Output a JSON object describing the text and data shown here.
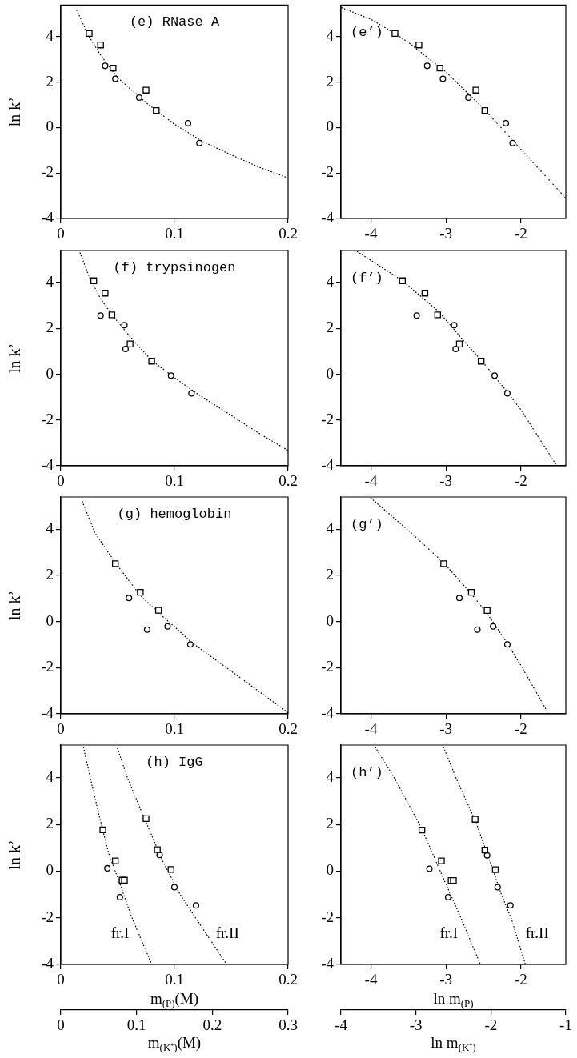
{
  "chart_data": [
    {
      "type": "scatter",
      "title": "(e) RNase A",
      "ylabel": "ln k’",
      "xlim": [
        0,
        0.2
      ],
      "ylim": [
        -4,
        5.4
      ],
      "xticks": [
        0,
        0.1,
        0.2
      ],
      "yticks": [
        -4,
        -2,
        0,
        2,
        4
      ],
      "series": [
        {
          "marker": "square",
          "color": "#000000",
          "x": [
            0.025,
            0.035,
            0.046,
            0.075,
            0.084
          ],
          "values": [
            4.15,
            3.64,
            2.62,
            1.65,
            0.75
          ]
        },
        {
          "marker": "circle",
          "color": "#000000",
          "x": [
            0.039,
            0.048,
            0.069,
            0.112,
            0.122
          ],
          "values": [
            2.72,
            2.15,
            1.32,
            0.19,
            -0.68
          ]
        },
        {
          "type": "line",
          "marker": "none",
          "line_style": "dotted",
          "color": "#000000",
          "x": [
            0.014,
            0.025,
            0.035,
            0.05,
            0.075,
            0.1,
            0.125,
            0.15,
            0.175,
            0.2
          ],
          "values": [
            5.17,
            4.0,
            3.2,
            2.2,
            1.1,
            0.15,
            -0.62,
            -1.2,
            -1.75,
            -2.22
          ]
        }
      ]
    },
    {
      "type": "scatter",
      "title": "(e’)",
      "xlim": [
        -4.4,
        -1.4
      ],
      "ylim": [
        -4,
        5.4
      ],
      "xticks": [
        -4,
        -3,
        -2
      ],
      "yticks": [
        -4,
        -2,
        0,
        2,
        4
      ],
      "series": [
        {
          "marker": "square",
          "color": "#000000",
          "x": [
            -3.68,
            -3.36,
            -3.08,
            -2.6,
            -2.48
          ],
          "values": [
            4.15,
            3.64,
            2.62,
            1.65,
            0.75
          ]
        },
        {
          "marker": "circle",
          "color": "#000000",
          "x": [
            -3.25,
            -3.04,
            -2.7,
            -2.2,
            -2.11
          ],
          "values": [
            2.72,
            2.15,
            1.32,
            0.19,
            -0.68
          ]
        },
        {
          "type": "line",
          "marker": "none",
          "line_style": "dotted",
          "color": "#000000",
          "x": [
            -4.39,
            -4.0,
            -3.68,
            -3.5,
            -3.0,
            -2.5,
            -2.0,
            -1.41
          ],
          "values": [
            5.28,
            4.77,
            4.15,
            3.75,
            2.45,
            0.85,
            -0.95,
            -3.07
          ]
        }
      ]
    },
    {
      "type": "scatter",
      "title": "(f) trypsinogen",
      "ylabel": "ln k’",
      "xlim": [
        0,
        0.2
      ],
      "ylim": [
        -4,
        5.4
      ],
      "xticks": [
        0,
        0.1,
        0.2
      ],
      "yticks": [
        -4,
        -2,
        0,
        2,
        4
      ],
      "series": [
        {
          "marker": "square",
          "color": "#000000",
          "x": [
            0.029,
            0.039,
            0.045,
            0.061,
            0.08
          ],
          "values": [
            4.08,
            3.54,
            2.59,
            1.32,
            0.57
          ]
        },
        {
          "marker": "circle",
          "color": "#000000",
          "x": [
            0.035,
            0.056,
            0.057,
            0.097,
            0.115
          ],
          "values": [
            2.56,
            2.14,
            1.1,
            -0.06,
            -0.84
          ]
        },
        {
          "type": "line",
          "marker": "none",
          "line_style": "dotted",
          "color": "#000000",
          "x": [
            0.017,
            0.025,
            0.035,
            0.045,
            0.06,
            0.08,
            0.1,
            0.12,
            0.15,
            0.175,
            0.2
          ],
          "values": [
            5.3,
            4.25,
            3.3,
            2.6,
            1.7,
            0.6,
            -0.15,
            -0.85,
            -1.8,
            -2.6,
            -3.33
          ]
        }
      ]
    },
    {
      "type": "scatter",
      "title": "(f’)",
      "xlim": [
        -4.4,
        -1.4
      ],
      "ylim": [
        -4,
        5.4
      ],
      "xticks": [
        -4,
        -3,
        -2
      ],
      "yticks": [
        -4,
        -2,
        0,
        2,
        4
      ],
      "series": [
        {
          "marker": "square",
          "color": "#000000",
          "x": [
            -3.58,
            -3.28,
            -3.11,
            -2.82,
            -2.53
          ],
          "values": [
            4.08,
            3.54,
            2.59,
            1.32,
            0.57
          ]
        },
        {
          "marker": "circle",
          "color": "#000000",
          "x": [
            -3.39,
            -2.89,
            -2.87,
            -2.35,
            -2.18
          ],
          "values": [
            2.56,
            2.14,
            1.1,
            -0.06,
            -0.84
          ]
        },
        {
          "type": "line",
          "marker": "none",
          "line_style": "dotted",
          "color": "#000000",
          "x": [
            -4.18,
            -3.58,
            -3.1,
            -2.8,
            -2.5,
            -2.2,
            -2.0,
            -1.52
          ],
          "values": [
            5.35,
            4.08,
            2.75,
            1.6,
            0.5,
            -0.7,
            -1.55,
            -4.0
          ]
        }
      ]
    },
    {
      "type": "scatter",
      "title": "(g) hemoglobin",
      "ylabel": "ln k’",
      "xlim": [
        0,
        0.2
      ],
      "ylim": [
        -4,
        5.4
      ],
      "xticks": [
        0,
        0.1,
        0.2
      ],
      "yticks": [
        -4,
        -2,
        0,
        2,
        4
      ],
      "series": [
        {
          "marker": "square",
          "color": "#000000",
          "x": [
            0.048,
            0.07,
            0.086
          ],
          "values": [
            2.51,
            1.27,
            0.49
          ]
        },
        {
          "marker": "circle",
          "color": "#000000",
          "x": [
            0.06,
            0.076,
            0.094,
            0.114
          ],
          "values": [
            1.02,
            -0.35,
            -0.21,
            -0.99
          ]
        },
        {
          "type": "line",
          "marker": "none",
          "line_style": "dotted",
          "color": "#000000",
          "x": [
            0.019,
            0.03,
            0.048,
            0.07,
            0.09,
            0.1,
            0.115,
            0.15,
            0.175,
            0.2
          ],
          "values": [
            5.2,
            3.85,
            2.55,
            1.13,
            0.2,
            -0.22,
            -0.9,
            -2.15,
            -3.05,
            -3.95
          ]
        }
      ]
    },
    {
      "type": "scatter",
      "title": "(g’)",
      "xlim": [
        -4.4,
        -1.4
      ],
      "ylim": [
        -4,
        5.4
      ],
      "xticks": [
        -4,
        -3,
        -2
      ],
      "yticks": [
        -4,
        -2,
        0,
        2,
        4
      ],
      "series": [
        {
          "marker": "square",
          "color": "#000000",
          "x": [
            -3.03,
            -2.66,
            -2.45
          ],
          "values": [
            2.51,
            1.27,
            0.48
          ]
        },
        {
          "marker": "circle",
          "color": "#000000",
          "x": [
            -2.82,
            -2.58,
            -2.37,
            -2.18
          ],
          "values": [
            1.02,
            -0.35,
            -0.21,
            -0.99
          ]
        },
        {
          "type": "line",
          "marker": "none",
          "line_style": "dotted",
          "color": "#000000",
          "x": [
            -4.0,
            -3.5,
            -3.03,
            -2.66,
            -2.45,
            -2.2,
            -2.0,
            -1.63
          ],
          "values": [
            5.35,
            3.95,
            2.55,
            1.2,
            0.35,
            -0.85,
            -1.9,
            -4.0
          ]
        }
      ]
    },
    {
      "type": "scatter",
      "title": "(h) IgG",
      "ylabel": "ln k’",
      "xlabel": "m$_{(P)}$(M)",
      "x2label": "m$_{(K⁺)}$(M)",
      "xlim": [
        0,
        0.2
      ],
      "ylim": [
        -4,
        5.4
      ],
      "xticks": [
        0,
        0.1,
        0.2
      ],
      "yticks": [
        -4,
        -2,
        0,
        2,
        4
      ],
      "x2lim": [
        0,
        0.3
      ],
      "x2ticks": [
        0,
        0.1,
        0.2,
        0.3
      ],
      "annotations": [
        "fr.I",
        "fr.II"
      ],
      "series": [
        {
          "marker": "square",
          "color": "#000000",
          "x": [
            0.037,
            0.048,
            0.054,
            0.056,
            0.075,
            0.085,
            0.097
          ],
          "values": [
            1.77,
            0.44,
            -0.39,
            -0.39,
            2.25,
            0.92,
            0.07
          ]
        },
        {
          "marker": "circle",
          "color": "#000000",
          "x": [
            0.041,
            0.052,
            0.087,
            0.1,
            0.119
          ],
          "values": [
            0.12,
            -1.12,
            0.69,
            -0.69,
            -1.47
          ]
        },
        {
          "type": "line",
          "marker": "none",
          "line_style": "dotted",
          "color": "#000000",
          "x": [
            0.02,
            0.027,
            0.034,
            0.042,
            0.052,
            0.062,
            0.08
          ],
          "values": [
            5.3,
            3.78,
            2.34,
            0.78,
            -0.54,
            -1.92,
            -4.0
          ]
        },
        {
          "type": "line",
          "marker": "none",
          "line_style": "dotted",
          "color": "#000000",
          "x": [
            0.05,
            0.059,
            0.075,
            0.09,
            0.105,
            0.12,
            0.146
          ],
          "values": [
            5.25,
            3.95,
            2.1,
            0.4,
            -1.0,
            -2.1,
            -4.0
          ]
        }
      ]
    },
    {
      "type": "scatter",
      "title": "(h’)",
      "xlabel": "ln m$_{(P)}$",
      "x2label": "ln m$_{(K⁺)}$",
      "xlim": [
        -4.4,
        -1.4
      ],
      "ylim": [
        -4,
        5.4
      ],
      "xticks": [
        -4,
        -3,
        -2
      ],
      "yticks": [
        -4,
        -2,
        0,
        2,
        4
      ],
      "x2lim": [
        -4,
        -1
      ],
      "x2ticks": [
        -4,
        -3,
        -2,
        -1
      ],
      "annotations": [
        "fr.I",
        "fr.II"
      ],
      "series": [
        {
          "marker": "square",
          "color": "#000000",
          "x": [
            -3.32,
            -3.06,
            -2.93,
            -2.9,
            -2.61,
            -2.48,
            -2.34
          ],
          "values": [
            1.76,
            0.44,
            -0.4,
            -0.4,
            2.22,
            0.9,
            0.06
          ]
        },
        {
          "marker": "circle",
          "color": "#000000",
          "x": [
            -3.22,
            -2.97,
            -2.45,
            -2.31,
            -2.14
          ],
          "values": [
            0.1,
            -1.12,
            0.67,
            -0.69,
            -1.47
          ]
        },
        {
          "type": "line",
          "marker": "none",
          "line_style": "dotted",
          "color": "#000000",
          "x": [
            -3.94,
            -3.68,
            -3.32,
            -3.0,
            -2.8,
            -2.54
          ],
          "values": [
            5.3,
            3.95,
            1.8,
            -0.55,
            -2.0,
            -4.0
          ]
        },
        {
          "type": "line",
          "marker": "none",
          "line_style": "dotted",
          "color": "#000000",
          "x": [
            -3.03,
            -2.86,
            -2.6,
            -2.41,
            -2.26,
            -2.12,
            -1.94
          ],
          "values": [
            5.3,
            3.95,
            2.1,
            0.4,
            -1.0,
            -2.1,
            -4.0
          ]
        }
      ]
    }
  ]
}
